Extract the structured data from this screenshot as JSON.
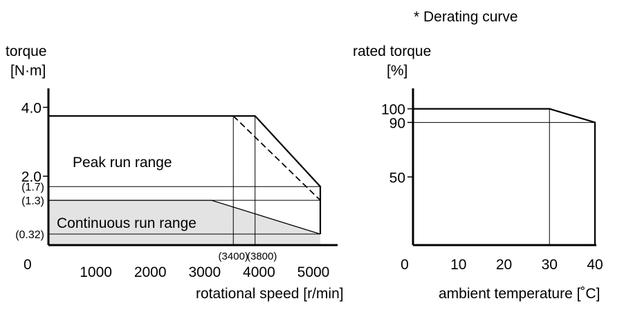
{
  "header": {
    "note": "* Derating curve"
  },
  "chart_data": [
    {
      "type": "area",
      "ylabel_lines": [
        "torque",
        "[N·m]"
      ],
      "xlabel": "rotational speed [r/min]",
      "origin_label": "0",
      "xlim": [
        0,
        5000
      ],
      "ylim": [
        0,
        4.35
      ],
      "x_ticks": [
        {
          "value": 1000,
          "label": "1000"
        },
        {
          "value": 2000,
          "label": "2000"
        },
        {
          "value": 3000,
          "label": "3000"
        },
        {
          "value": 4000,
          "label": "4000"
        },
        {
          "value": 5000,
          "label": "5000"
        }
      ],
      "y_ticks": [
        {
          "value": 4.0,
          "label": "4.0"
        },
        {
          "value": 2.0,
          "label": "2.0"
        }
      ],
      "y_ref_labels": [
        {
          "value": 1.7,
          "label": "(1.7)"
        },
        {
          "value": 1.3,
          "label": "(1.3)"
        },
        {
          "value": 0.32,
          "label": "(0.32)"
        }
      ],
      "x_ref_labels": [
        {
          "value": 3400,
          "label": "(3400)"
        },
        {
          "value": 3800,
          "label": "(3800)"
        }
      ],
      "regions": [
        {
          "name": "Peak run range",
          "label": "Peak run range",
          "points": [
            [
              0,
              3.75
            ],
            [
              3800,
              3.75
            ],
            [
              5000,
              1.7
            ],
            [
              5000,
              0.32
            ]
          ]
        },
        {
          "name": "Continuous run range",
          "label": "Continuous run range",
          "points": [
            [
              0,
              1.3
            ],
            [
              3000,
              1.3
            ],
            [
              5000,
              0.32
            ]
          ],
          "fill": "#e3e3e3"
        }
      ],
      "dashed_series": {
        "points": [
          [
            3400,
            3.75
          ],
          [
            5000,
            1.3
          ]
        ]
      }
    },
    {
      "type": "line",
      "ylabel_lines": [
        "rated torque",
        "[%]"
      ],
      "xlabel": "ambient temperature [˚C]",
      "xlim": [
        0,
        40
      ],
      "ylim": [
        0,
        115
      ],
      "x_ticks": [
        {
          "value": 0,
          "label": "0"
        },
        {
          "value": 10,
          "label": "10"
        },
        {
          "value": 20,
          "label": "20"
        },
        {
          "value": 30,
          "label": "30"
        },
        {
          "value": 40,
          "label": "40"
        }
      ],
      "y_ticks": [
        {
          "value": 100,
          "label": "100"
        },
        {
          "value": 90,
          "label": "90"
        },
        {
          "value": 50,
          "label": "50"
        }
      ],
      "series": [
        {
          "points": [
            [
              0,
              100
            ],
            [
              30,
              100
            ],
            [
              40,
              90
            ]
          ]
        }
      ]
    }
  ]
}
